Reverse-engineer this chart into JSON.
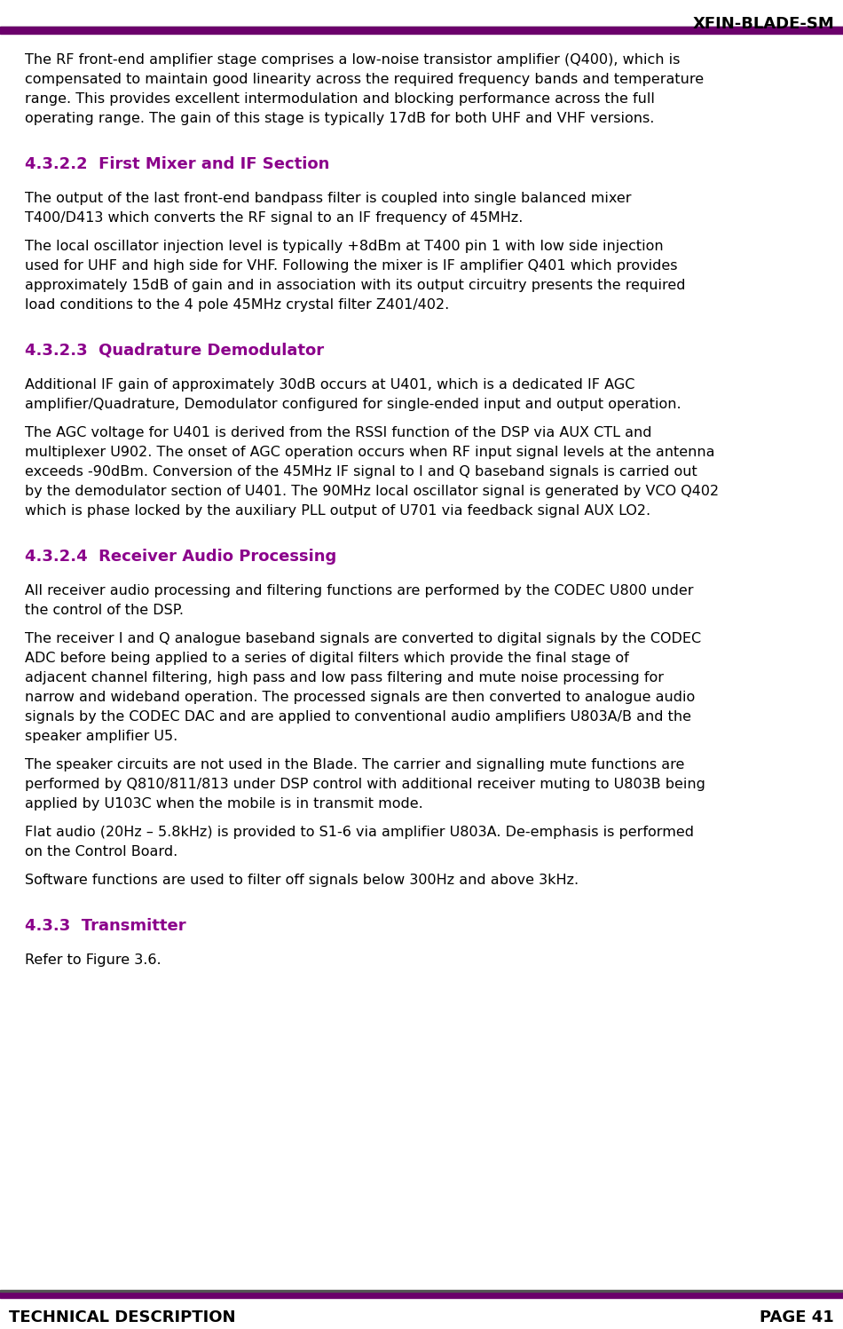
{
  "header_title": "XFIN-BLADE-SM",
  "header_line_color": "#6B006B",
  "footer_left": "TECHNICAL DESCRIPTION",
  "footer_right": "PAGE 41",
  "footer_line_color": "#6B006B",
  "heading_color": "#8B008B",
  "body_color": "#000000",
  "background_color": "#FFFFFF",
  "sections": [
    {
      "type": "body",
      "text": "The RF front-end amplifier stage comprises a low-noise transistor amplifier (Q400), which is  compensated  to  maintain  good  linearity  across  the  required  frequency  bands  and temperature  range.  This  provides  excellent  intermodulation  and  blocking  performance across the full operating range. The gain of this stage is typically 17dB for both UHF and VHF versions."
    },
    {
      "type": "heading",
      "text": "4.3.2.2  First Mixer and IF Section"
    },
    {
      "type": "body",
      "text": "The  output  of  the  last  front-end  bandpass  filter  is  coupled  into  single  balanced  mixer T400/D413 which converts the RF signal to an IF frequency of 45MHz."
    },
    {
      "type": "body",
      "text": "The local oscillator injection level is typically +8dBm at T400 pin 1 with low side injection used  for  UHF  and  high  side  for  VHF.  Following  the  mixer  is  IF  amplifier  Q401  which provides approximately 15dB of gain and in association with its output circuitry presents the required load conditions to the 4 pole 45MHz crystal filter Z401/402."
    },
    {
      "type": "heading",
      "text": "4.3.2.3  Quadrature Demodulator"
    },
    {
      "type": "body",
      "text": "Additional IF gain of approximately 30dB  occurs at  U401,  which is a  dedicated IF AGC amplifier/Quadrature,  Demodulator  configured  for  single-ended  input  and  output operation."
    },
    {
      "type": "body",
      "text": "The AGC voltage for U401 is derived from the RSSI function of the DSP via AUX CTL and multiplexer U902. The onset of AGC operation occurs when RF input signal levels at the antenna  exceeds  -90dBm.  Conversion  of  the  45MHz  IF  signal  to  I  and  Q  baseband signals  is  carried  out  by  the  demodulator  section  of  U401.  The  90MHz  local oscillator signal is generated by VCO Q402  which is phase locked by the auxiliary PLL output of U701 via feedback signal AUX LO2."
    },
    {
      "type": "heading",
      "text": "4.3.2.4  Receiver Audio Processing"
    },
    {
      "type": "body",
      "text": "All receiver audio processing and filtering functions are performed by the CODEC U800 under the control of the DSP."
    },
    {
      "type": "body",
      "text": "The receiver I and Q analogue baseband signals are converted to digital signals by the CODEC  ADC  before  being  applied  to  a  series  of  digital  filters  which  provide  the  final stage  of  adjacent  channel  filtering,  high  pass  and  low  pass  filtering  and  mute  noise processing for narrow and wideband operation. The processed signals are then converted to  analogue  audio  signals  by  the  CODEC  DAC  and  are  applied  to  conventional  audio amplifiers U803A/B and the speaker amplifier U5."
    },
    {
      "type": "body",
      "text": "The speaker circuits are not used in the Blade.  The carrier and signalling mute functions are  performed  by  Q810/811/813  under  DSP  control  with  additional  receiver  muting  to U803B being applied by U103C when the mobile is in transmit mode."
    },
    {
      "type": "body",
      "text": "Flat  audio  (20Hz  –  5.8kHz)  is  provided  to  S1-6  via  amplifier  U803A.  De-emphasis  is performed on the Control Board."
    },
    {
      "type": "body",
      "text": "Software functions are used to filter off signals below 300Hz and above 3kHz."
    },
    {
      "type": "heading",
      "text": "4.3.3  Transmitter"
    },
    {
      "type": "body",
      "text": "Refer to Figure 3.6."
    }
  ]
}
